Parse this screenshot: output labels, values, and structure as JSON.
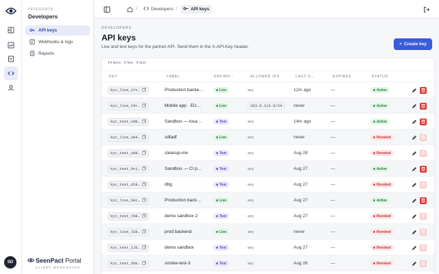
{
  "nav": {
    "section": "INTEGRATE",
    "title": "Developers",
    "items": [
      {
        "label": "API keys",
        "active": true,
        "icon": "key-icon"
      },
      {
        "label": "Webhooks & logs",
        "active": false,
        "icon": "webhook-icon"
      },
      {
        "label": "Reports",
        "active": false,
        "icon": "report-icon"
      }
    ],
    "brand_bold": "SeenPact",
    "brand_rest": " Portal",
    "brand_sub": "CLIENT WORKSPACE",
    "avatar": "SD"
  },
  "rail": [
    "dashboard-icon",
    "chart-icon",
    "document-icon",
    "code-icon",
    "user-icon"
  ],
  "breadcrumb": {
    "developers": "Developers",
    "current": "API keys"
  },
  "page": {
    "eyebrow": "DEVELOPERS",
    "title": "API keys",
    "subtitle": "Live and test keys for the partner API. Send them in the X-API-Key header.",
    "create_label": "Create key"
  },
  "table": {
    "summary": "14 keys · 5 live · 9 test",
    "headers": {
      "key": "KEY",
      "label": "LABEL",
      "env": "ENVIRO…",
      "ips": "ALLOWED IPS",
      "last": "LAST U…",
      "expires": "EXPIRES",
      "status": "STATUS"
    },
    "rows": [
      {
        "key": "kyc_live_1Yv…",
        "label": "Production backe…",
        "env": "Live",
        "ips": "any",
        "ip_box": false,
        "last": "12m ago",
        "expires": "—",
        "status": "Active"
      },
      {
        "key": "kyc_live_V4r…",
        "label": "Mobile app · EU…",
        "env": "Live",
        "ips": "203.0.113.0/24",
        "ip_box": true,
        "last": "never",
        "expires": "—",
        "status": "Active"
      },
      {
        "key": "kyc_test_vd8…",
        "label": "Sandbox — loca…",
        "env": "Test",
        "ips": "any",
        "ip_box": false,
        "last": "14m ago",
        "expires": "—",
        "status": "Active"
      },
      {
        "key": "kyc_live_u04…",
        "label": "sdfadf",
        "env": "Live",
        "ips": "any",
        "ip_box": false,
        "last": "never",
        "expires": "—",
        "status": "Revoked"
      },
      {
        "key": "kyc_test_zdd…",
        "label": "cleanup-me",
        "env": "Test",
        "ips": "any",
        "ip_box": false,
        "last": "Aug 28",
        "expires": "—",
        "status": "Revoked"
      },
      {
        "key": "kyc_test_8vj…",
        "label": "Sandbox — CI p…",
        "env": "Test",
        "ips": "any",
        "ip_box": false,
        "last": "Aug 27",
        "expires": "—",
        "status": "Active"
      },
      {
        "key": "kyc_test_dt9…",
        "label": "dbg",
        "env": "Test",
        "ips": "any",
        "ip_box": false,
        "last": "Aug 27",
        "expires": "—",
        "status": "Revoked"
      },
      {
        "key": "kyc_live_6Ai…",
        "label": "Production back…",
        "env": "Live",
        "ips": "any",
        "ip_box": false,
        "last": "Aug 27",
        "expires": "—",
        "status": "Active"
      },
      {
        "key": "kyc_test_7A8…",
        "label": "demo sandbox 2",
        "env": "Test",
        "ips": "any",
        "ip_box": false,
        "last": "Aug 27",
        "expires": "—",
        "status": "Revoked"
      },
      {
        "key": "kyc_live_lS8…",
        "label": "prod backend",
        "env": "Live",
        "ips": "any",
        "ip_box": false,
        "last": "never",
        "expires": "—",
        "status": "Revoked"
      },
      {
        "key": "kyc_test_IJ6…",
        "label": "demo sandbox",
        "env": "Test",
        "ips": "any",
        "ip_box": false,
        "last": "Aug 27",
        "expires": "—",
        "status": "Revoked"
      },
      {
        "key": "kyc_test_XOe…",
        "label": "smoke-test-3",
        "env": "Test",
        "ips": "any",
        "ip_box": false,
        "last": "Aug 26",
        "expires": "—",
        "status": "Revoked"
      }
    ]
  },
  "colors": {
    "accent": "#3b5bdb",
    "live": "#2fa352",
    "test": "#7a5ce0",
    "revoked": "#e04848",
    "delete": "#e03131"
  }
}
